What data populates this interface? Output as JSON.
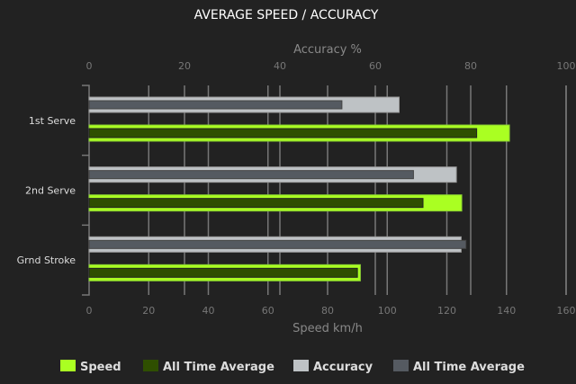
{
  "chart_data": {
    "type": "bar",
    "orientation": "horizontal",
    "title": "AVERAGE SPEED / ACCURACY",
    "categories": [
      "1st Serve",
      "2nd Serve",
      "Grnd Stroke"
    ],
    "x_top": {
      "label": "Accuracy %",
      "range": [
        0,
        100
      ],
      "ticks": [
        0,
        20,
        40,
        60,
        80,
        100
      ]
    },
    "x_bottom": {
      "label": "Speed km/h",
      "range": [
        0,
        160
      ],
      "ticks": [
        0,
        20,
        40,
        60,
        80,
        100,
        120,
        140,
        160
      ]
    },
    "series": [
      {
        "name": "Speed",
        "axis": "bottom",
        "color": "#aaff22",
        "values": [
          141,
          125,
          91
        ]
      },
      {
        "name": "All Time Average",
        "axis": "bottom",
        "color": "#2f4f00",
        "values": [
          130,
          112,
          90
        ]
      },
      {
        "name": "Accuracy",
        "axis": "top",
        "color": "#bec2c5",
        "values": [
          65,
          77,
          78
        ]
      },
      {
        "name": "All Time Average",
        "axis": "top",
        "color": "#555a61",
        "values": [
          53,
          68,
          79
        ]
      }
    ],
    "grid": true,
    "legend": "bottom"
  }
}
